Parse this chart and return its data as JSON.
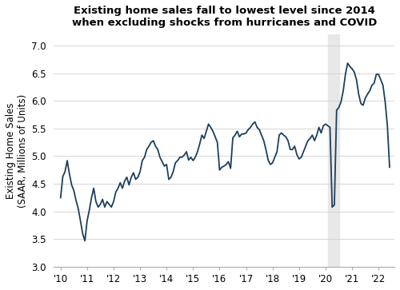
{
  "title_line1": "Existing home sales fall to lowest level since 2014",
  "title_line2": "when excluding shocks from hurricanes and COVID",
  "ylabel": "Existing Home Sales\n(SAAR, Millions of Units)",
  "ylim": [
    3.0,
    7.2
  ],
  "yticks": [
    3.0,
    3.5,
    4.0,
    4.5,
    5.0,
    5.5,
    6.0,
    6.5,
    7.0
  ],
  "line_color": "#1c3f5e",
  "background_color": "#ffffff",
  "shaded_region": [
    2020.08,
    2020.5
  ],
  "shaded_color": "#e8e8e8",
  "dates": [
    2010.0,
    2010.083,
    2010.167,
    2010.25,
    2010.333,
    2010.417,
    2010.5,
    2010.583,
    2010.667,
    2010.75,
    2010.833,
    2010.917,
    2011.0,
    2011.083,
    2011.167,
    2011.25,
    2011.333,
    2011.417,
    2011.5,
    2011.583,
    2011.667,
    2011.75,
    2011.833,
    2011.917,
    2012.0,
    2012.083,
    2012.167,
    2012.25,
    2012.333,
    2012.417,
    2012.5,
    2012.583,
    2012.667,
    2012.75,
    2012.833,
    2012.917,
    2013.0,
    2013.083,
    2013.167,
    2013.25,
    2013.333,
    2013.417,
    2013.5,
    2013.583,
    2013.667,
    2013.75,
    2013.833,
    2013.917,
    2014.0,
    2014.083,
    2014.167,
    2014.25,
    2014.333,
    2014.417,
    2014.5,
    2014.583,
    2014.667,
    2014.75,
    2014.833,
    2014.917,
    2015.0,
    2015.083,
    2015.167,
    2015.25,
    2015.333,
    2015.417,
    2015.5,
    2015.583,
    2015.667,
    2015.75,
    2015.833,
    2015.917,
    2016.0,
    2016.083,
    2016.167,
    2016.25,
    2016.333,
    2016.417,
    2016.5,
    2016.583,
    2016.667,
    2016.75,
    2016.833,
    2016.917,
    2017.0,
    2017.083,
    2017.167,
    2017.25,
    2017.333,
    2017.417,
    2017.5,
    2017.583,
    2017.667,
    2017.75,
    2017.833,
    2017.917,
    2018.0,
    2018.083,
    2018.167,
    2018.25,
    2018.333,
    2018.417,
    2018.5,
    2018.583,
    2018.667,
    2018.75,
    2018.833,
    2018.917,
    2019.0,
    2019.083,
    2019.167,
    2019.25,
    2019.333,
    2019.417,
    2019.5,
    2019.583,
    2019.667,
    2019.75,
    2019.833,
    2019.917,
    2020.0,
    2020.083,
    2020.167,
    2020.25,
    2020.333,
    2020.417,
    2020.5,
    2020.583,
    2020.667,
    2020.75,
    2020.833,
    2020.917,
    2021.0,
    2021.083,
    2021.167,
    2021.25,
    2021.333,
    2021.417,
    2021.5,
    2021.583,
    2021.667,
    2021.75,
    2021.833,
    2021.917,
    2022.0,
    2022.083,
    2022.167,
    2022.25,
    2022.333,
    2022.417
  ],
  "values": [
    4.25,
    4.63,
    4.72,
    4.92,
    4.68,
    4.48,
    4.38,
    4.2,
    4.05,
    3.83,
    3.6,
    3.47,
    3.83,
    4.02,
    4.25,
    4.42,
    4.18,
    4.08,
    4.13,
    4.22,
    4.08,
    4.18,
    4.13,
    4.08,
    4.18,
    4.35,
    4.42,
    4.52,
    4.42,
    4.55,
    4.62,
    4.48,
    4.62,
    4.7,
    4.58,
    4.62,
    4.72,
    4.92,
    4.98,
    5.12,
    5.18,
    5.25,
    5.28,
    5.18,
    5.12,
    4.98,
    4.9,
    4.82,
    4.85,
    4.58,
    4.62,
    4.72,
    4.88,
    4.92,
    4.98,
    4.98,
    5.02,
    5.08,
    4.93,
    4.98,
    4.92,
    4.98,
    5.08,
    5.22,
    5.38,
    5.32,
    5.45,
    5.58,
    5.52,
    5.45,
    5.35,
    5.25,
    4.75,
    4.8,
    4.82,
    4.85,
    4.9,
    4.78,
    5.33,
    5.38,
    5.45,
    5.35,
    5.4,
    5.4,
    5.42,
    5.48,
    5.52,
    5.58,
    5.62,
    5.52,
    5.48,
    5.38,
    5.28,
    5.12,
    4.93,
    4.85,
    4.88,
    4.98,
    5.08,
    5.38,
    5.42,
    5.38,
    5.35,
    5.28,
    5.12,
    5.12,
    5.18,
    5.03,
    4.95,
    4.98,
    5.08,
    5.18,
    5.28,
    5.32,
    5.38,
    5.28,
    5.38,
    5.52,
    5.42,
    5.55,
    5.58,
    5.55,
    5.52,
    4.08,
    4.12,
    5.83,
    5.88,
    5.98,
    6.18,
    6.48,
    6.68,
    6.62,
    6.58,
    6.52,
    6.38,
    6.12,
    5.95,
    5.92,
    6.05,
    6.12,
    6.18,
    6.28,
    6.32,
    6.48,
    6.48,
    6.38,
    6.28,
    5.98,
    5.55,
    4.8
  ],
  "xtick_positions": [
    2010.0,
    2011.0,
    2012.0,
    2013.0,
    2014.0,
    2015.0,
    2016.0,
    2017.0,
    2018.0,
    2019.0,
    2020.0,
    2021.0,
    2022.0
  ],
  "xtick_labels": [
    "'10",
    "'11",
    "'12",
    "'13",
    "'14",
    "'15",
    "'16",
    "'17",
    "'18",
    "'19",
    "'20",
    "'21",
    "'22"
  ],
  "xlim": [
    2009.75,
    2022.6
  ]
}
